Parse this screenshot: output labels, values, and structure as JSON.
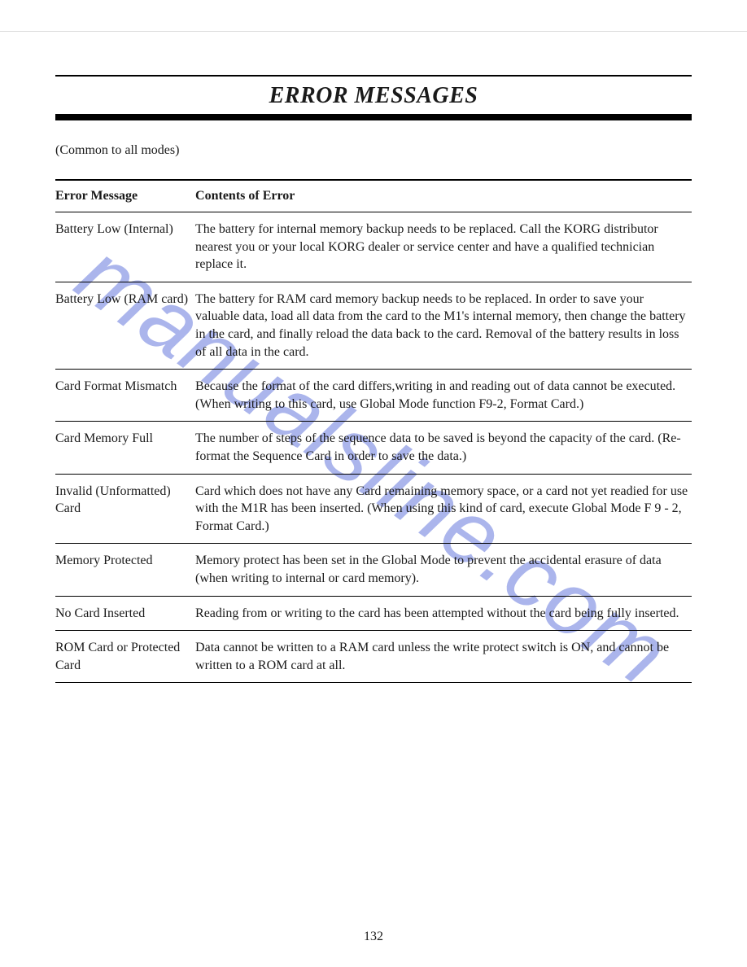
{
  "page": {
    "title": "ERROR MESSAGES",
    "subtitle": "(Common to all modes)",
    "watermark": "manualsline.com",
    "page_number": "132",
    "colors": {
      "text": "#1a1a1a",
      "rule": "#000000",
      "background": "#ffffff",
      "top_hairline": "#dcdcdc",
      "watermark": "rgba(102,120,220,0.55)"
    },
    "typography": {
      "body_family": "Times New Roman",
      "title_fontsize": 28,
      "body_fontsize": 16,
      "watermark_fontsize": 110
    },
    "table": {
      "headers": {
        "message": "Error Message",
        "contents": "Contents of Error"
      },
      "column_widths_pct": [
        22,
        78
      ],
      "rows": [
        {
          "message": "Battery Low (Internal)",
          "contents": "The battery for internal memory backup needs to be replaced.  Call the KORG distributor nearest you or your local KORG dealer or service center and have a qualified technician replace it."
        },
        {
          "message": "Battery Low (RAM card)",
          "contents": "The battery for RAM card memory backup needs to be replaced.  In order to save your valuable data, load all data from the card to the M1's internal memory, then change the battery in the card, and finally reload the data back to the card.  Removal of the battery results in loss of all data in the card."
        },
        {
          "message": "Card Format Mismatch",
          "contents": "Because the format of the card differs,writing in and reading out of data cannot be executed.  (When writing to this card, use Global Mode function F9-2, Format Card.)"
        },
        {
          "message": "Card Memory Full",
          "contents": "The number of steps of the sequence data to be saved is beyond the capacity of the card.  (Re-format the Sequence Card in order to save the data.)"
        },
        {
          "message": "Invalid (Unformatted) Card",
          "contents": "Card which does not have any Card remaining memory space, or a card not yet readied for use with the M1R has been inserted.  (When using this kind of card, execute Global Mode F 9 - 2, Format Card.)"
        },
        {
          "message": "Memory Protected",
          "contents": "Memory protect has been set in the Global Mode to prevent the accidental erasure of data (when writing to internal or card memory)."
        },
        {
          "message": "No Card Inserted",
          "contents": "Reading from or writing to the card has been attempted without the card being fully inserted."
        },
        {
          "message": "ROM Card or Protected Card",
          "contents": "Data cannot be written to a RAM card unless the write protect switch is ON, and cannot be written to a ROM card at all."
        }
      ]
    }
  }
}
